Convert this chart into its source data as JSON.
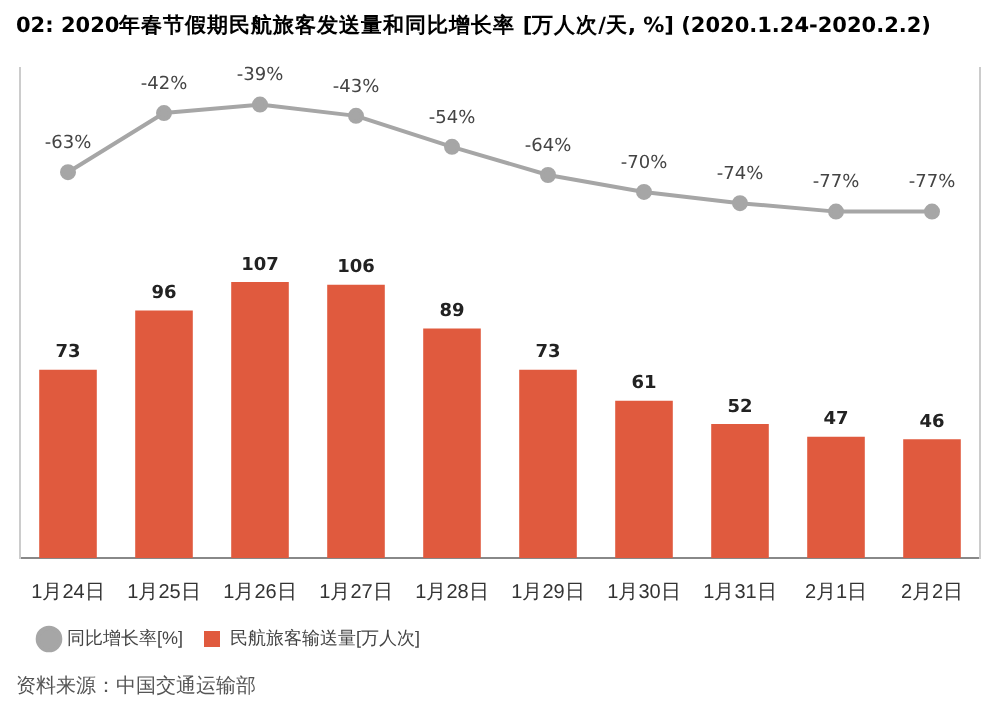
{
  "chart_data": {
    "type": "bar",
    "title": "02: 2020年春节假期民航旅客发送量和同比增长率 [万人次/天, %] (2020.1.24-2020.2.2)",
    "categories": [
      "1月24日",
      "1月25日",
      "1月26日",
      "1月27日",
      "1月28日",
      "1月29日",
      "1月30日",
      "1月31日",
      "2月1日",
      "2月2日"
    ],
    "series": [
      {
        "name": "民航旅客输送量[万人次]",
        "color": "#e05a3e",
        "values": [
          73,
          96,
          107,
          106,
          89,
          73,
          61,
          52,
          47,
          46
        ]
      },
      {
        "name": "同比增长率[%]",
        "type": "line",
        "axis": "y2",
        "color": "#a6a6a6",
        "values": [
          -63,
          -42,
          -39,
          -43,
          -54,
          -64,
          -70,
          -74,
          -77,
          -77
        ],
        "value_labels": [
          "-63%",
          "-42%",
          "-39%",
          "-43%",
          "-54%",
          "-64%",
          "-70%",
          "-74%",
          "-77%",
          "-77%"
        ]
      }
    ],
    "ylim": [
      0,
      190
    ],
    "y2lim": [
      -200,
      -26
    ],
    "data_labels": true,
    "grid": false,
    "legend": "bottom left",
    "marker": "circle",
    "annotations": [
      "资料来源：中国交通运输部"
    ]
  }
}
